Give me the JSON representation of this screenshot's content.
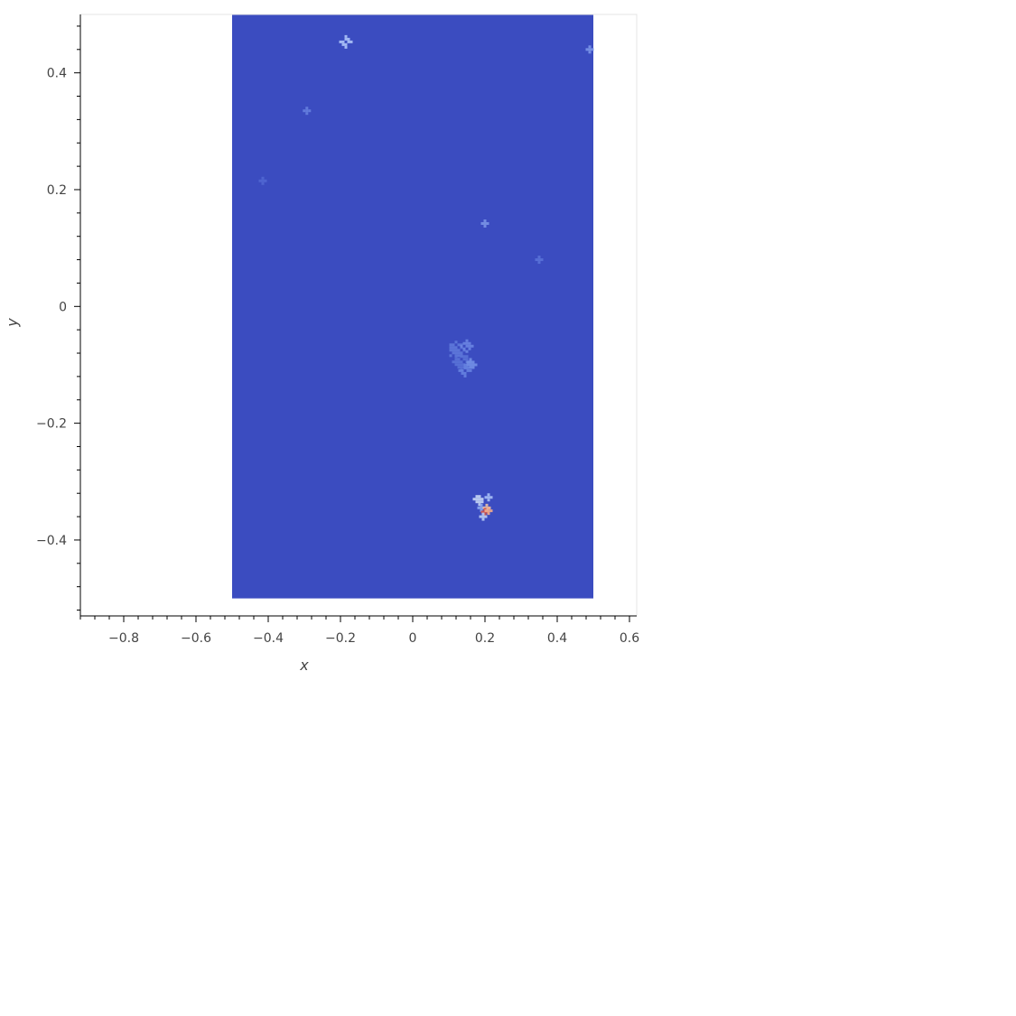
{
  "chart_data": {
    "type": "heatmap",
    "xlabel": "x",
    "ylabel": "y",
    "xlim": [
      -0.92,
      0.62
    ],
    "ylim": [
      -0.53,
      0.5
    ],
    "x_ticks": [
      {
        "value": -0.8,
        "label": "−0.8"
      },
      {
        "value": -0.6,
        "label": "−0.6"
      },
      {
        "value": -0.4,
        "label": "−0.4"
      },
      {
        "value": -0.2,
        "label": "−0.2"
      },
      {
        "value": 0,
        "label": "0"
      },
      {
        "value": 0.2,
        "label": "0.2"
      },
      {
        "value": 0.4,
        "label": "0.4"
      },
      {
        "value": 0.6,
        "label": "0.6"
      }
    ],
    "y_ticks": [
      {
        "value": 0.4,
        "label": "0.4"
      },
      {
        "value": 0.2,
        "label": "0.2"
      },
      {
        "value": 0,
        "label": "0"
      },
      {
        "value": -0.2,
        "label": "−0.2"
      },
      {
        "value": -0.4,
        "label": "−0.4"
      }
    ],
    "image_extent": {
      "x": [
        -0.5,
        0.5
      ],
      "y": [
        -0.5,
        0.5
      ]
    },
    "background_color": "#3b4cc0",
    "colormap": "coolwarm",
    "features": [
      {
        "x": -0.185,
        "y": 0.453,
        "size": 0.012,
        "color": "#aec4f8"
      },
      {
        "x": 0.49,
        "y": 0.44,
        "size": 0.01,
        "color": "#7b96e8"
      },
      {
        "x": -0.293,
        "y": 0.335,
        "size": 0.006,
        "color": "#6680de"
      },
      {
        "x": -0.415,
        "y": 0.215,
        "size": 0.005,
        "color": "#5167d2"
      },
      {
        "x": 0.2,
        "y": 0.142,
        "size": 0.008,
        "color": "#7a93e6"
      },
      {
        "x": 0.35,
        "y": 0.08,
        "size": 0.004,
        "color": "#5a72d8"
      },
      {
        "x": 0.12,
        "y": -0.075,
        "size": 0.02,
        "color": "#5f79da"
      },
      {
        "x": 0.15,
        "y": -0.068,
        "size": 0.016,
        "color": "#6b85e2"
      },
      {
        "x": 0.135,
        "y": -0.095,
        "size": 0.022,
        "color": "#5a73d7"
      },
      {
        "x": 0.16,
        "y": -0.1,
        "size": 0.014,
        "color": "#7390e6"
      },
      {
        "x": 0.145,
        "y": -0.11,
        "size": 0.012,
        "color": "#6682e0"
      },
      {
        "x": 0.185,
        "y": -0.33,
        "size": 0.012,
        "color": "#c6d6f4"
      },
      {
        "x": 0.21,
        "y": -0.327,
        "size": 0.01,
        "color": "#a9c0f6"
      },
      {
        "x": 0.19,
        "y": -0.345,
        "size": 0.009,
        "color": "#8da9f0"
      },
      {
        "x": 0.205,
        "y": -0.345,
        "size": 0.008,
        "color": "#e7c0a8"
      },
      {
        "x": 0.2,
        "y": -0.352,
        "size": 0.005,
        "color": "#d65244"
      },
      {
        "x": 0.21,
        "y": -0.35,
        "size": 0.004,
        "color": "#f2ab8c"
      },
      {
        "x": 0.195,
        "y": -0.36,
        "size": 0.006,
        "color": "#b9cdf4"
      }
    ]
  }
}
